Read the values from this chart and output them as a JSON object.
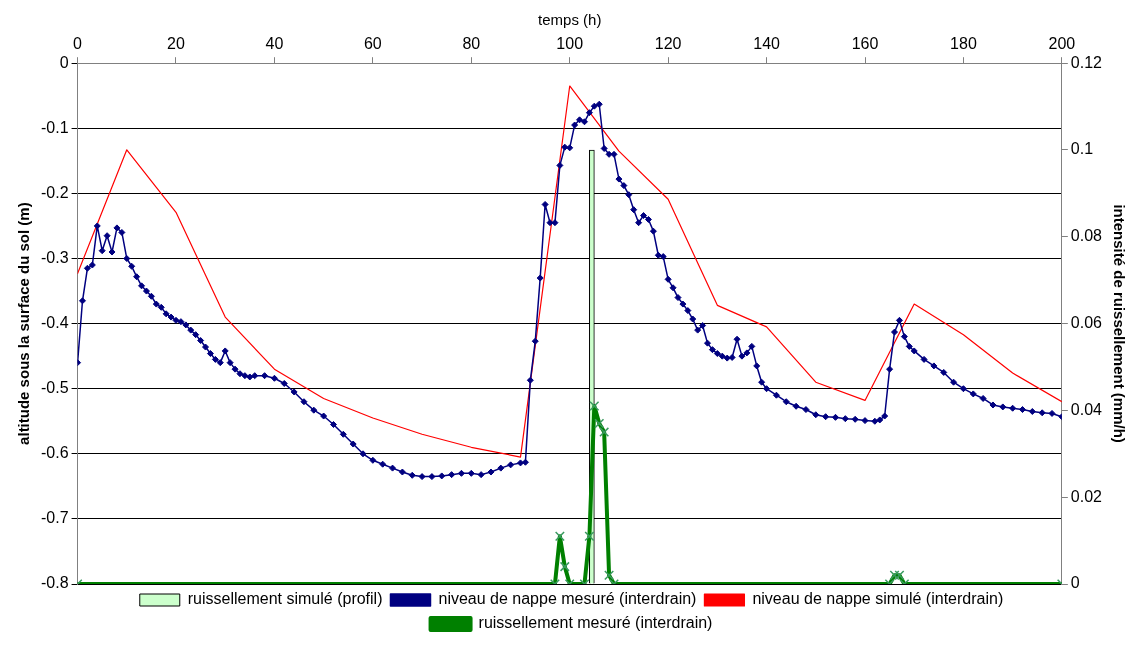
{
  "chart_data": {
    "type": "line",
    "xlabel": "temps (h)",
    "ylabel": "altitude sous la surface du sol (m)",
    "y2label": "intensité de ruissellement (mm/h)",
    "xlim": [
      0,
      200
    ],
    "xticks": [
      0,
      20,
      40,
      60,
      80,
      100,
      120,
      140,
      160,
      180,
      200
    ],
    "ylim": [
      -0.8,
      0
    ],
    "yticks": [
      -0.8,
      -0.7,
      -0.6,
      -0.5,
      -0.4,
      -0.3,
      -0.2,
      -0.1,
      0
    ],
    "y2lim": [
      0,
      0.12
    ],
    "y2ticks": [
      0,
      0.02,
      0.04,
      0.06,
      0.08,
      0.1,
      0.12
    ],
    "grid": "y",
    "legend": "bottom",
    "series": [
      {
        "name": "ruissellement simulé (profil)",
        "type": "bar",
        "axis": "y2",
        "color": "#ccffcc",
        "x": [
          104.5
        ],
        "values": [
          0.1
        ]
      },
      {
        "name": "niveau de nappe mesuré (interdrain)",
        "axis": "y",
        "color": "#000080",
        "marker": "diamond",
        "x": [
          0,
          1,
          2,
          3,
          4,
          5,
          6,
          7,
          8,
          9,
          10,
          11,
          12,
          13,
          14,
          15,
          16,
          17,
          18,
          19,
          20,
          21,
          22,
          23,
          24,
          25,
          26,
          27,
          28,
          29,
          30,
          31,
          32,
          33,
          34,
          35,
          36,
          38,
          40,
          42,
          44,
          46,
          48,
          50,
          52,
          54,
          56,
          58,
          60,
          62,
          64,
          66,
          68,
          70,
          72,
          74,
          76,
          78,
          80,
          82,
          84,
          86,
          88,
          90,
          91,
          92,
          93,
          94,
          95,
          96,
          97,
          98,
          99,
          100,
          101,
          102,
          103,
          104,
          105,
          106,
          107,
          108,
          109,
          110,
          111,
          112,
          113,
          114,
          115,
          116,
          117,
          118,
          119,
          120,
          121,
          122,
          123,
          124,
          125,
          126,
          127,
          128,
          129,
          130,
          131,
          132,
          133,
          134,
          135,
          136,
          137,
          138,
          139,
          140,
          142,
          144,
          146,
          148,
          150,
          152,
          154,
          156,
          158,
          160,
          162,
          163,
          164,
          165,
          166,
          167,
          168,
          169,
          170,
          172,
          174,
          176,
          178,
          180,
          182,
          184,
          186,
          188,
          190,
          192,
          194,
          196,
          198,
          200
        ],
        "values": [
          -0.46,
          -0.365,
          -0.315,
          -0.31,
          -0.25,
          -0.288,
          -0.265,
          -0.29,
          -0.253,
          -0.26,
          -0.3,
          -0.312,
          -0.328,
          -0.342,
          -0.35,
          -0.358,
          -0.37,
          -0.375,
          -0.385,
          -0.39,
          -0.395,
          -0.397,
          -0.402,
          -0.41,
          -0.417,
          -0.426,
          -0.436,
          -0.446,
          -0.455,
          -0.46,
          -0.442,
          -0.46,
          -0.47,
          -0.477,
          -0.48,
          -0.482,
          -0.48,
          -0.48,
          -0.484,
          -0.492,
          -0.505,
          -0.52,
          -0.533,
          -0.542,
          -0.555,
          -0.57,
          -0.585,
          -0.6,
          -0.61,
          -0.616,
          -0.622,
          -0.628,
          -0.633,
          -0.635,
          -0.635,
          -0.634,
          -0.632,
          -0.63,
          -0.63,
          -0.632,
          -0.628,
          -0.622,
          -0.617,
          -0.614,
          -0.613,
          -0.487,
          -0.427,
          -0.33,
          -0.217,
          -0.245,
          -0.245,
          -0.157,
          -0.129,
          -0.13,
          -0.095,
          -0.087,
          -0.09,
          -0.076,
          -0.066,
          -0.063,
          -0.131,
          -0.14,
          -0.14,
          -0.178,
          -0.188,
          -0.202,
          -0.225,
          -0.245,
          -0.234,
          -0.24,
          -0.258,
          -0.295,
          -0.297,
          -0.332,
          -0.345,
          -0.36,
          -0.37,
          -0.38,
          -0.393,
          -0.41,
          -0.403,
          -0.43,
          -0.44,
          -0.446,
          -0.45,
          -0.453,
          -0.452,
          -0.424,
          -0.45,
          -0.445,
          -0.435,
          -0.465,
          -0.49,
          -0.5,
          -0.51,
          -0.52,
          -0.527,
          -0.532,
          -0.54,
          -0.543,
          -0.544,
          -0.546,
          -0.547,
          -0.549,
          -0.55,
          -0.548,
          -0.542,
          -0.47,
          -0.413,
          -0.395,
          -0.42,
          -0.435,
          -0.442,
          -0.455,
          -0.465,
          -0.475,
          -0.49,
          -0.5,
          -0.508,
          -0.515,
          -0.525,
          -0.528,
          -0.53,
          -0.532,
          -0.535,
          -0.537,
          -0.538,
          -0.543
        ]
      },
      {
        "name": "niveau de nappe simulé (interdrain)",
        "axis": "y",
        "color": "#ff0000",
        "marker": "none",
        "x": [
          0,
          10,
          20,
          30,
          40,
          50,
          60,
          70,
          80,
          90,
          100,
          110,
          120,
          130,
          140,
          150,
          160,
          170,
          180,
          190,
          200
        ],
        "values": [
          -0.323,
          -0.133,
          -0.229,
          -0.39,
          -0.47,
          -0.515,
          -0.545,
          -0.57,
          -0.59,
          -0.605,
          -0.035,
          -0.135,
          -0.209,
          -0.372,
          -0.405,
          -0.49,
          -0.518,
          -0.37,
          -0.417,
          -0.476,
          -0.52
        ]
      },
      {
        "name": "ruissellement mesuré (interdrain)",
        "axis": "y2",
        "color": "#008000",
        "marker": "cross",
        "x": [
          0,
          97,
          98,
          99,
          100,
          103,
          104,
          105,
          106,
          107,
          108,
          109,
          165,
          166,
          167,
          168,
          200
        ],
        "values": [
          0,
          0,
          0.011,
          0.004,
          0,
          0,
          0.011,
          0.041,
          0.037,
          0.035,
          0.002,
          0,
          0,
          0.002,
          0.002,
          0,
          0
        ]
      }
    ]
  }
}
